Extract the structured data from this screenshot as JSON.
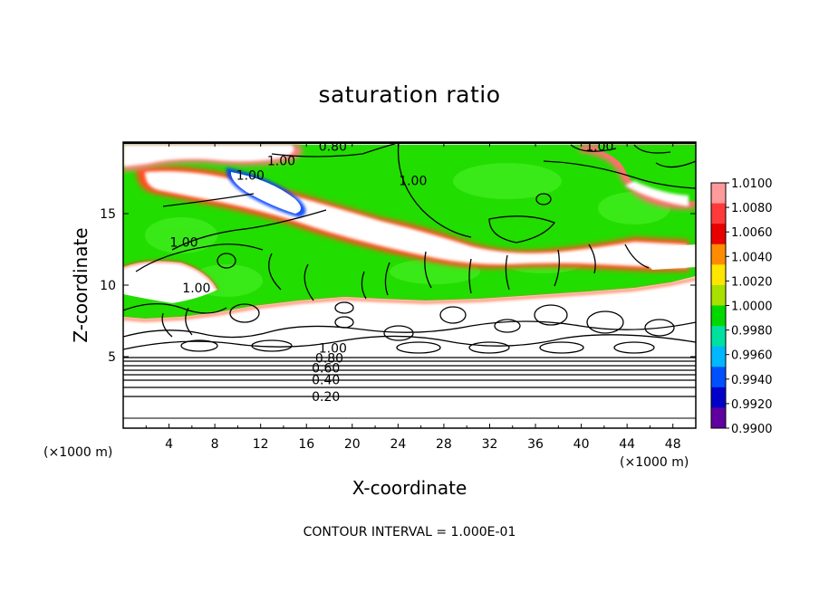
{
  "chart_data": {
    "type": "heatmap",
    "title": "saturation ratio",
    "xlabel": "X-coordinate",
    "ylabel": "Z-coordinate",
    "x_unit": "(×1000 m)",
    "y_unit": "(×1000 m)",
    "xlim": [
      0,
      50
    ],
    "ylim": [
      0,
      20
    ],
    "x_ticks": [
      4,
      8,
      12,
      16,
      20,
      24,
      28,
      32,
      36,
      40,
      44,
      48
    ],
    "y_ticks": [
      5,
      10,
      15
    ],
    "colorbar": {
      "labels": [
        "1.0100",
        "1.0080",
        "1.0060",
        "1.0040",
        "1.0020",
        "1.0000",
        "0.9980",
        "0.9960",
        "0.9940",
        "0.9920",
        "0.9900"
      ],
      "colors": [
        "#ff9a9a",
        "#ff3a3a",
        "#e80000",
        "#ff8c00",
        "#ffe600",
        "#a8e000",
        "#00d800",
        "#00e0a0",
        "#00b8ff",
        "#0050ff",
        "#0000c8",
        "#6000a0"
      ]
    },
    "contour_labels": [
      {
        "text": "0.80",
        "x": 18.3,
        "z": 19.7
      },
      {
        "text": "1.00",
        "x": 13.8,
        "z": 18.7
      },
      {
        "text": "1.00",
        "x": 11.1,
        "z": 17.7
      },
      {
        "text": "1.00",
        "x": 25.3,
        "z": 17.3
      },
      {
        "text": "1.00",
        "x": 41.6,
        "z": 19.7
      },
      {
        "text": "1.00",
        "x": 5.3,
        "z": 13.0
      },
      {
        "text": "1.00",
        "x": 6.4,
        "z": 9.8
      },
      {
        "text": "1.00",
        "x": 18.3,
        "z": 5.6
      },
      {
        "text": "0.80",
        "x": 18.0,
        "z": 4.9
      },
      {
        "text": "0.60",
        "x": 17.7,
        "z": 4.2
      },
      {
        "text": "0.40",
        "x": 17.7,
        "z": 3.4
      },
      {
        "text": "0.20",
        "x": 17.7,
        "z": 2.2
      }
    ],
    "contour_interval": "CONTOUR INTERVAL = 1.000E-01"
  }
}
